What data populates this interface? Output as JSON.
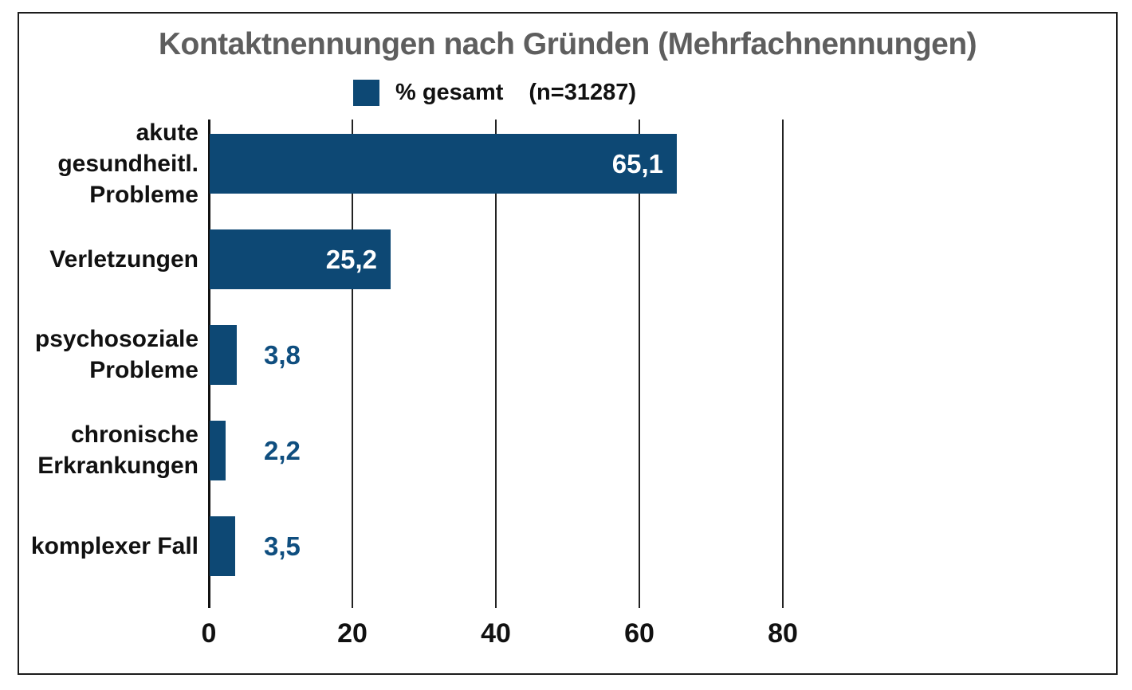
{
  "frame": {
    "background": "#FFFFFF",
    "border_color": "#1C1C1C"
  },
  "chart_data": {
    "type": "bar",
    "orientation": "horizontal",
    "title": "Kontaktnennungen nach Gründen (Mehrfachnennungen)",
    "legend": {
      "series_label": "% gesamt",
      "sample_size_label": "(n=31287)",
      "position": "top-center"
    },
    "categories": [
      "akute gesundheitl. Probleme",
      "Verletzungen",
      "psychosoziale Probleme",
      "chronische Erkrankungen",
      "komplexer Fall"
    ],
    "category_label_lines": [
      [
        "akute",
        "gesundheitl.",
        "Probleme"
      ],
      [
        "Verletzungen"
      ],
      [
        "psychosoziale",
        "Probleme"
      ],
      [
        "chronische",
        "Erkrankungen"
      ],
      [
        "komplexer Fall"
      ]
    ],
    "series": [
      {
        "name": "% gesamt",
        "values": [
          65.1,
          25.2,
          3.8,
          2.2,
          3.5
        ]
      }
    ],
    "value_labels": [
      "65,1",
      "25,2",
      "3,8",
      "2,2",
      "3,5"
    ],
    "value_label_placement": [
      "inside",
      "inside",
      "outside",
      "outside",
      "outside"
    ],
    "x_tick_labels": [
      "0",
      "20",
      "40",
      "60",
      "80"
    ],
    "x_tick_values": [
      0,
      20,
      40,
      60,
      80
    ],
    "xlim": [
      0,
      100
    ],
    "grid_vertical": true,
    "colors": {
      "bar": "#0D4874",
      "title": "#5E5E5E",
      "axis": "#111111",
      "gridline": "#222222",
      "value_inside": "#FFFFFF",
      "value_outside": "#0F4E7F",
      "category_label": "#111111",
      "tick_label": "#111111"
    }
  }
}
